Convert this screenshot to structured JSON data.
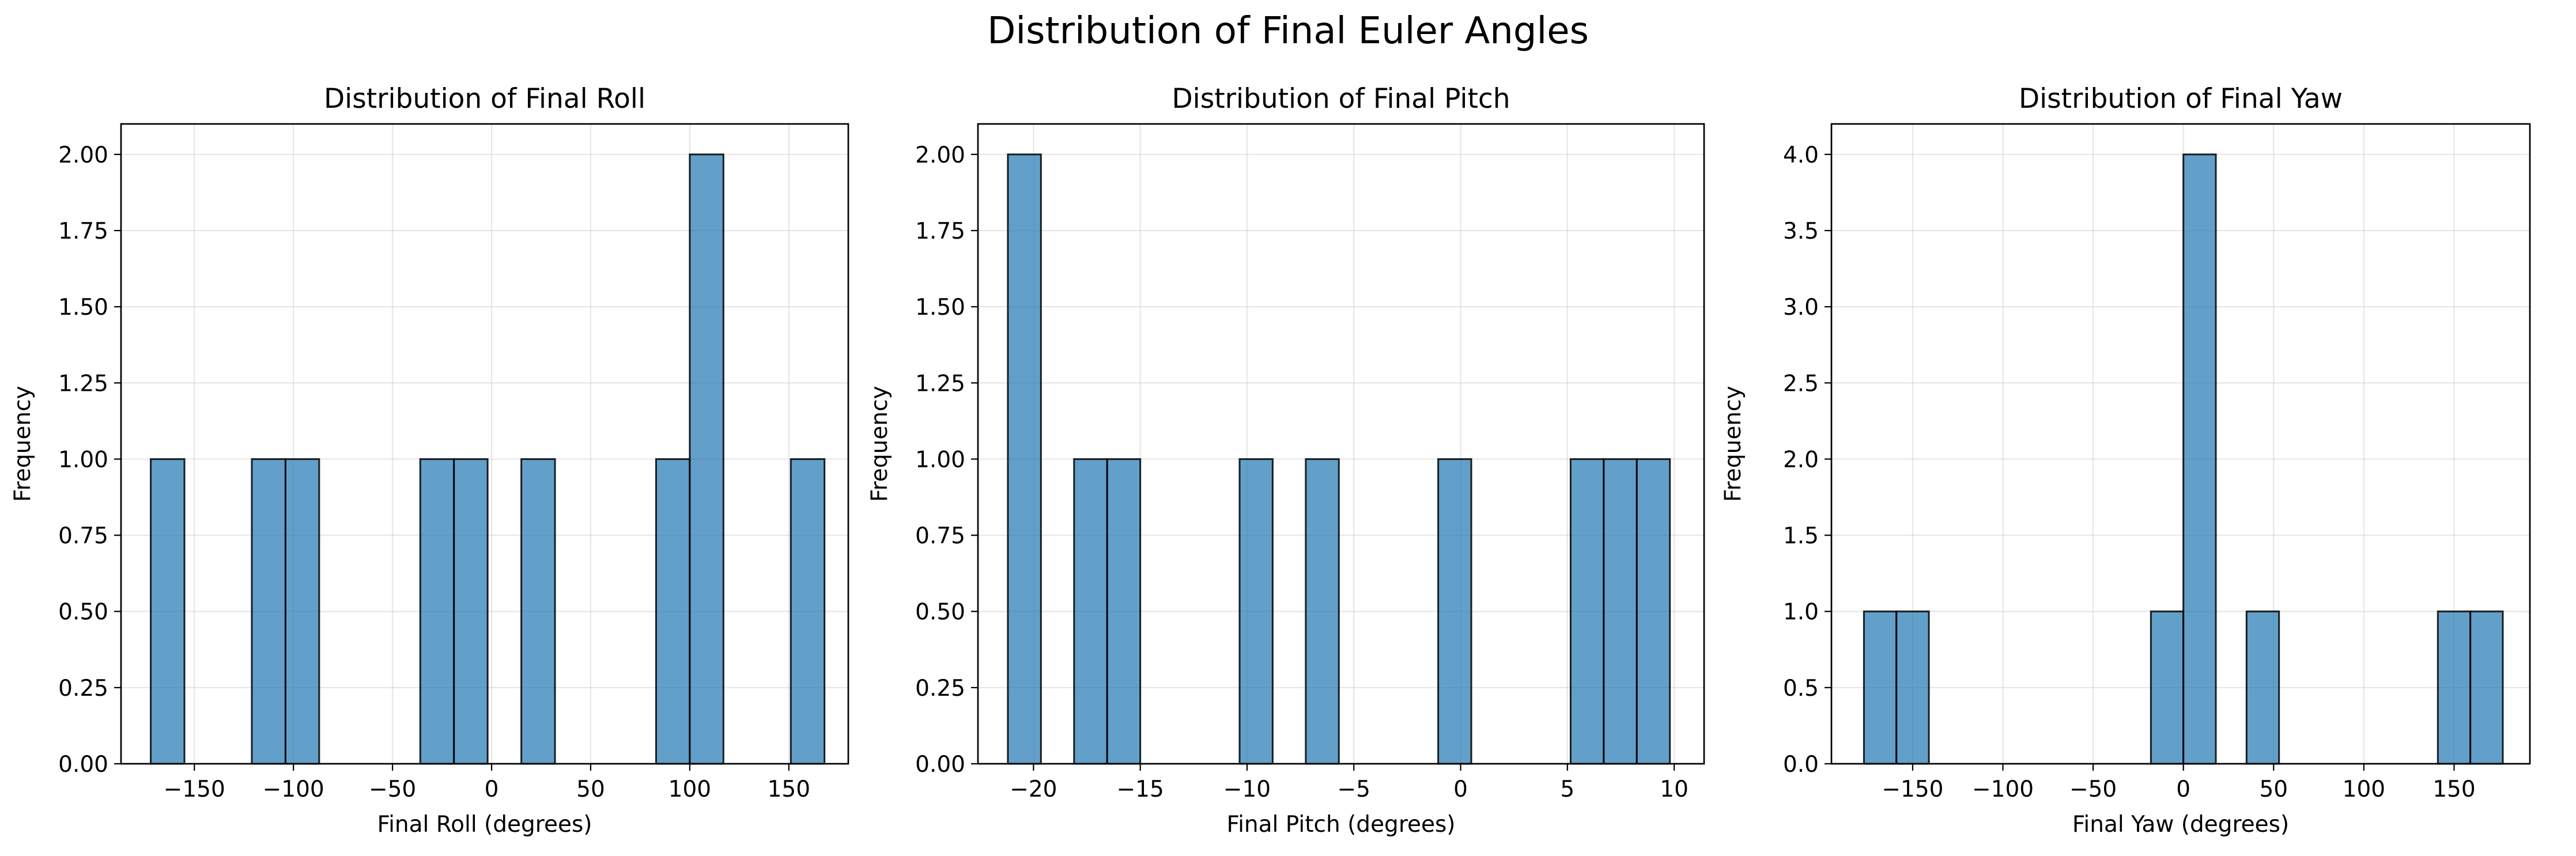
{
  "figure": {
    "title": "Distribution of Final Euler Angles"
  },
  "colors": {
    "bar_fill": "#1f77b4",
    "bar_fill_opacity": 0.7,
    "bar_edge": "#000000",
    "grid": "#b0b0b0",
    "axes": "#000000"
  },
  "chart_data": [
    {
      "type": "bar",
      "subtype": "histogram",
      "title": "Distribution of Final Roll",
      "xlabel": "Final Roll (degrees)",
      "ylabel": "Frequency",
      "xlim": [
        -187,
        180
      ],
      "ylim": [
        0,
        2.1
      ],
      "xticks": [
        -150,
        -100,
        -50,
        0,
        50,
        100,
        150
      ],
      "xtick_labels": [
        "−150",
        "−100",
        "−50",
        "0",
        "50",
        "100",
        "150"
      ],
      "yticks": [
        0,
        0.25,
        0.5,
        0.75,
        1.0,
        1.25,
        1.5,
        1.75,
        2.0
      ],
      "ytick_labels": [
        "0.00",
        "0.25",
        "0.50",
        "0.75",
        "1.00",
        "1.25",
        "1.50",
        "1.75",
        "2.00"
      ],
      "grid": true,
      "bins": [
        {
          "x0": -172,
          "x1": -155,
          "count": 1
        },
        {
          "x0": -121,
          "x1": -104,
          "count": 1
        },
        {
          "x0": -104,
          "x1": -87,
          "count": 1
        },
        {
          "x0": -36,
          "x1": -19,
          "count": 1
        },
        {
          "x0": -19,
          "x1": -2,
          "count": 1
        },
        {
          "x0": 15,
          "x1": 32,
          "count": 1
        },
        {
          "x0": 83,
          "x1": 100,
          "count": 1
        },
        {
          "x0": 100,
          "x1": 117,
          "count": 2
        },
        {
          "x0": 151,
          "x1": 168,
          "count": 1
        }
      ]
    },
    {
      "type": "bar",
      "subtype": "histogram",
      "title": "Distribution of Final Pitch",
      "xlabel": "Final Pitch (degrees)",
      "ylabel": "Frequency",
      "xlim": [
        -22.6,
        11.4
      ],
      "ylim": [
        0,
        2.1
      ],
      "xticks": [
        -20,
        -15,
        -10,
        -5,
        0,
        5,
        10
      ],
      "xtick_labels": [
        "−20",
        "−15",
        "−10",
        "−5",
        "0",
        "5",
        "10"
      ],
      "yticks": [
        0,
        0.25,
        0.5,
        0.75,
        1.0,
        1.25,
        1.5,
        1.75,
        2.0
      ],
      "ytick_labels": [
        "0.00",
        "0.25",
        "0.50",
        "0.75",
        "1.00",
        "1.25",
        "1.50",
        "1.75",
        "2.00"
      ],
      "grid": true,
      "bins": [
        {
          "x0": -21.2,
          "x1": -19.65,
          "count": 2
        },
        {
          "x0": -18.1,
          "x1": -16.55,
          "count": 1
        },
        {
          "x0": -16.55,
          "x1": -15.0,
          "count": 1
        },
        {
          "x0": -10.35,
          "x1": -8.8,
          "count": 1
        },
        {
          "x0": -7.25,
          "x1": -5.7,
          "count": 1
        },
        {
          "x0": -1.05,
          "x1": 0.5,
          "count": 1
        },
        {
          "x0": 5.15,
          "x1": 6.7,
          "count": 1
        },
        {
          "x0": 6.7,
          "x1": 8.25,
          "count": 1
        },
        {
          "x0": 8.25,
          "x1": 9.8,
          "count": 1
        }
      ]
    },
    {
      "type": "bar",
      "subtype": "histogram",
      "title": "Distribution of Final Yaw",
      "xlabel": "Final Yaw (degrees)",
      "ylabel": "Frequency",
      "xlim": [
        -195,
        192
      ],
      "ylim": [
        0,
        4.2
      ],
      "xticks": [
        -150,
        -100,
        -50,
        0,
        50,
        100,
        150
      ],
      "xtick_labels": [
        "−150",
        "−100",
        "−50",
        "0",
        "50",
        "100",
        "150"
      ],
      "yticks": [
        0,
        0.5,
        1.0,
        1.5,
        2.0,
        2.5,
        3.0,
        3.5,
        4.0
      ],
      "ytick_labels": [
        "0.0",
        "0.5",
        "1.0",
        "1.5",
        "2.0",
        "2.5",
        "3.0",
        "3.5",
        "4.0"
      ],
      "grid": true,
      "bins": [
        {
          "x0": -177,
          "x1": -159,
          "count": 1
        },
        {
          "x0": -159,
          "x1": -141,
          "count": 1
        },
        {
          "x0": -18,
          "x1": 0,
          "count": 1
        },
        {
          "x0": 0,
          "x1": 18,
          "count": 4
        },
        {
          "x0": 35,
          "x1": 53,
          "count": 1
        },
        {
          "x0": 141,
          "x1": 159,
          "count": 1
        },
        {
          "x0": 159,
          "x1": 177,
          "count": 1
        }
      ]
    }
  ]
}
